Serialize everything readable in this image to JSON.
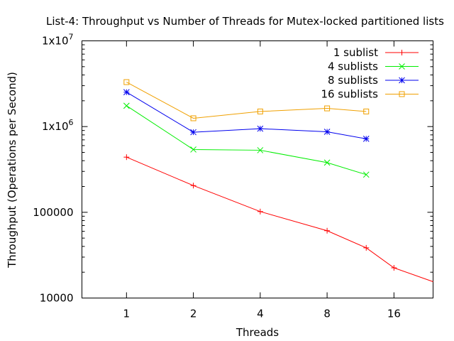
{
  "chart_data": {
    "type": "line",
    "title": "List-4: Throughput vs Number of Threads for Mutex-locked partitioned lists",
    "xlabel": "Threads",
    "ylabel": "Throughput (Operations per Second)",
    "x_scale": "log2",
    "y_scale": "log10",
    "xlim": [
      0.63,
      24
    ],
    "ylim": [
      10000,
      10000000
    ],
    "x_ticks": [
      {
        "value": 1,
        "label": "1"
      },
      {
        "value": 2,
        "label": "2"
      },
      {
        "value": 4,
        "label": "4"
      },
      {
        "value": 8,
        "label": "8"
      },
      {
        "value": 16,
        "label": "16"
      }
    ],
    "y_ticks": [
      {
        "value": 10000,
        "label": "10000",
        "base": "10000",
        "exp": ""
      },
      {
        "value": 100000,
        "label": "100000",
        "base": "100000",
        "exp": ""
      },
      {
        "value": 1000000,
        "label": "1x10^6",
        "base": "1x10",
        "exp": "6"
      },
      {
        "value": 10000000,
        "label": "1x10^7",
        "base": "1x10",
        "exp": "7"
      }
    ],
    "legend_position": "top-right",
    "grid": false,
    "series": [
      {
        "name": "1 sublist",
        "color": "#ff0000",
        "marker": "plus",
        "x": [
          1,
          2,
          4,
          8,
          12,
          16,
          24
        ],
        "y": [
          440000,
          205000,
          102000,
          61000,
          38500,
          22500,
          15500
        ]
      },
      {
        "name": "4 sublists",
        "color": "#00ee00",
        "marker": "cross",
        "x": [
          1,
          2,
          4,
          8,
          12
        ],
        "y": [
          1750000,
          540000,
          530000,
          380000,
          275000
        ]
      },
      {
        "name": "8 sublists",
        "color": "#0000ee",
        "marker": "star",
        "x": [
          1,
          2,
          4,
          8,
          12
        ],
        "y": [
          2520000,
          860000,
          945000,
          870000,
          720000
        ]
      },
      {
        "name": "16 sublists",
        "color": "#f0a000",
        "marker": "square",
        "x": [
          1,
          2,
          4,
          8,
          12
        ],
        "y": [
          3300000,
          1250000,
          1500000,
          1630000,
          1500000
        ]
      }
    ]
  }
}
